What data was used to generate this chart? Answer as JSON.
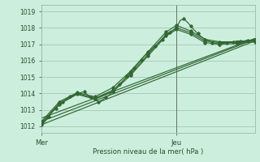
{
  "title": "Pression niveau de la mer( hPa )",
  "ylabel_values": [
    1012,
    1013,
    1014,
    1015,
    1016,
    1017,
    1018,
    1019
  ],
  "ylim": [
    1011.6,
    1019.4
  ],
  "xlim": [
    0,
    60
  ],
  "xtick_positions": [
    0,
    38
  ],
  "xtick_labels": [
    "Mer",
    "Jeu"
  ],
  "background_color": "#cceedd",
  "grid_color": "#aaccbb",
  "line_color": "#336633",
  "vline_x": 38,
  "series": {
    "line1": {
      "x": [
        0,
        1,
        2,
        3,
        4,
        5,
        6,
        7,
        8,
        9,
        10,
        11,
        12,
        13,
        14,
        15,
        16,
        17,
        18,
        19,
        20,
        21,
        22,
        23,
        24,
        25,
        26,
        27,
        28,
        29,
        30,
        31,
        32,
        33,
        34,
        35,
        36,
        37,
        38,
        39,
        40,
        41,
        42,
        43,
        44,
        45,
        46,
        47,
        48,
        49,
        50,
        51,
        52,
        53,
        54,
        55,
        56,
        57,
        58,
        59,
        60
      ],
      "y": [
        1012.1,
        1012.3,
        1012.6,
        1012.9,
        1013.1,
        1013.3,
        1013.5,
        1013.65,
        1013.8,
        1013.9,
        1014.0,
        1014.05,
        1014.1,
        1013.9,
        1013.75,
        1013.6,
        1013.5,
        1013.6,
        1013.75,
        1013.9,
        1014.1,
        1014.3,
        1014.55,
        1014.8,
        1015.05,
        1015.3,
        1015.55,
        1015.8,
        1016.05,
        1016.3,
        1016.5,
        1016.7,
        1016.9,
        1017.1,
        1017.3,
        1017.5,
        1017.7,
        1017.85,
        1018.0,
        1018.45,
        1018.55,
        1018.35,
        1018.1,
        1017.85,
        1017.65,
        1017.45,
        1017.3,
        1017.2,
        1017.1,
        1017.05,
        1017.0,
        1017.05,
        1017.1,
        1017.1,
        1017.15,
        1017.2,
        1017.2,
        1017.2,
        1017.25,
        1017.25,
        1017.3
      ]
    },
    "line2": {
      "x": [
        0,
        5,
        10,
        15,
        20,
        25,
        30,
        35,
        38,
        42,
        46,
        50,
        55,
        60
      ],
      "y": [
        1012.2,
        1013.4,
        1014.0,
        1013.7,
        1014.2,
        1015.2,
        1016.4,
        1017.6,
        1018.0,
        1017.7,
        1017.2,
        1017.1,
        1017.1,
        1017.2
      ]
    },
    "line3": {
      "x": [
        0,
        5,
        10,
        15,
        20,
        25,
        30,
        35,
        38,
        42,
        46,
        50,
        55,
        60
      ],
      "y": [
        1012.3,
        1013.5,
        1014.05,
        1013.8,
        1014.35,
        1015.35,
        1016.55,
        1017.75,
        1018.15,
        1017.8,
        1017.3,
        1017.15,
        1017.15,
        1017.25
      ]
    },
    "line4": {
      "x": [
        0,
        5,
        10,
        15,
        20,
        25,
        30,
        35,
        38,
        42,
        46,
        50,
        55,
        60
      ],
      "y": [
        1012.15,
        1013.35,
        1013.95,
        1013.65,
        1014.1,
        1015.1,
        1016.3,
        1017.5,
        1017.9,
        1017.6,
        1017.1,
        1017.0,
        1017.05,
        1017.15
      ]
    },
    "trend1": {
      "x": [
        0,
        60
      ],
      "y": [
        1012.1,
        1017.2
      ]
    },
    "trend2": {
      "x": [
        0,
        60
      ],
      "y": [
        1012.3,
        1017.3
      ]
    },
    "trend3": {
      "x": [
        0,
        60
      ],
      "y": [
        1012.5,
        1017.35
      ]
    }
  }
}
